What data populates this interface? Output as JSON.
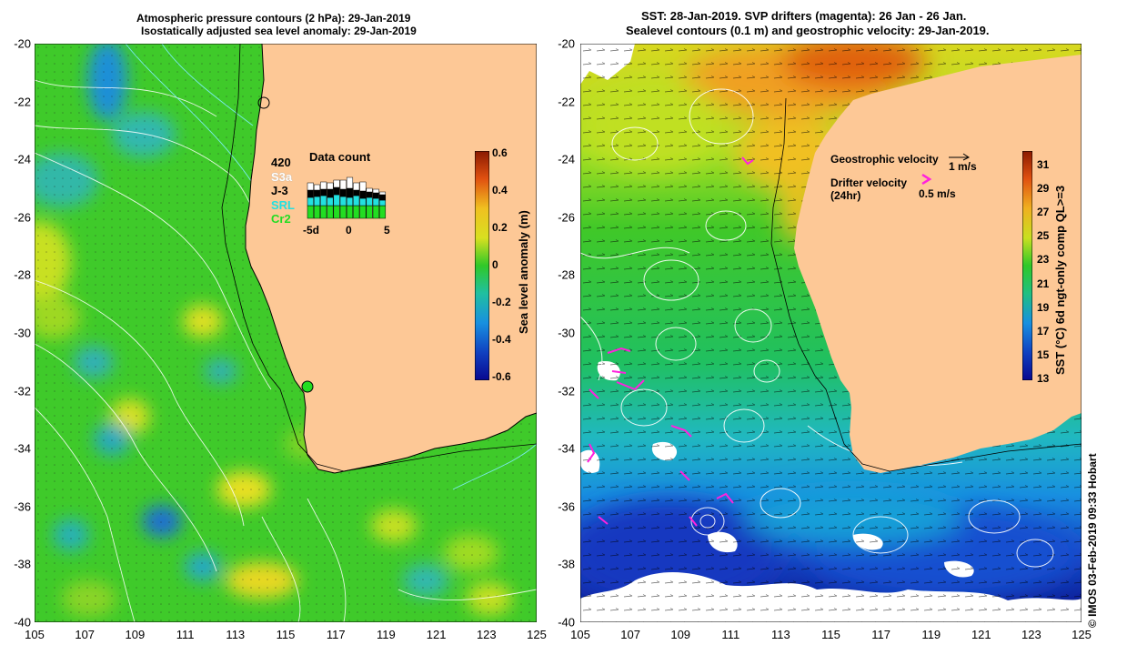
{
  "left_panel": {
    "title_line1": "Atmospheric pressure contours (2 hPa): 29-Jan-2019",
    "title_line2": "Isostatically adjusted sea level anomaly: 29-Jan-2019",
    "x_ticks": [
      "105",
      "107",
      "109",
      "111",
      "113",
      "115",
      "117",
      "119",
      "121",
      "123",
      "125"
    ],
    "y_ticks": [
      "-20",
      "-22",
      "-24",
      "-26",
      "-28",
      "-30",
      "-32",
      "-34",
      "-36",
      "-38",
      "-40"
    ],
    "colorbar": {
      "label": "Sea level anomaly (m)",
      "ticks": [
        "0.6",
        "0.4",
        "0.2",
        "0",
        "-0.2",
        "-0.4",
        "-0.6"
      ],
      "range": [
        -0.6,
        0.6
      ]
    },
    "data_count": {
      "title": "Data count",
      "satellites": [
        {
          "name": "420",
          "color": "#000000"
        },
        {
          "name": "S3a",
          "color": "#ffffff"
        },
        {
          "name": "J-3",
          "color": "#000000"
        },
        {
          "name": "SRL",
          "color": "#22e0e0"
        },
        {
          "name": "Cr2",
          "color": "#22dd22"
        }
      ],
      "axis_labels": [
        "-5d",
        "0",
        "5"
      ]
    },
    "colors": {
      "land": "#fdc896",
      "ocean": "#3fca2a",
      "coast": "#000000"
    }
  },
  "right_panel": {
    "title_line1": "SST: 28-Jan-2019. SVP drifters (magenta): 26 Jan - 26 Jan.",
    "title_line2": "Sealevel contours (0.1 m) and geostrophic velocity: 29-Jan-2019.",
    "x_ticks": [
      "105",
      "107",
      "109",
      "111",
      "113",
      "115",
      "117",
      "119",
      "121",
      "123",
      "125"
    ],
    "y_ticks": [
      "-20",
      "-22",
      "-24",
      "-26",
      "-28",
      "-30",
      "-32",
      "-34",
      "-36",
      "-38",
      "-40"
    ],
    "legend": {
      "geostrophic_label": "Geostrophic velocity",
      "geostrophic_scale": "1 m/s",
      "drifter_label_line1": "Drifter velocity",
      "drifter_label_line2": "(24hr)",
      "drifter_scale": "0.5 m/s"
    },
    "colorbar": {
      "label": "SST (°C) 6d ngt-only comp QL>=3",
      "ticks": [
        "31",
        "29",
        "27",
        "25",
        "23",
        "21",
        "19",
        "17",
        "15",
        "13"
      ],
      "range": [
        13,
        32
      ]
    },
    "credit": "© IMOS 03-Feb-2019 09:33 Hobart",
    "colors": {
      "land": "#fdc896",
      "drifter": "#ff22dd"
    }
  }
}
